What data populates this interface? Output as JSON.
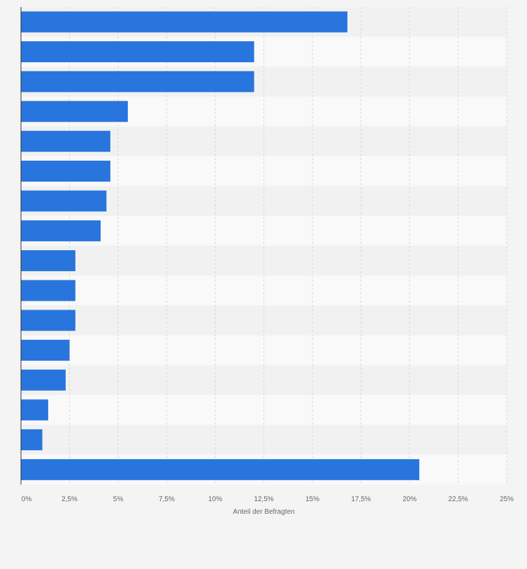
{
  "chart_data": {
    "type": "bar",
    "orientation": "horizontal",
    "title": "",
    "xlabel": "Anteil der Befragten",
    "ylabel": "",
    "xlim": [
      0,
      25
    ],
    "xticks": [
      "0%",
      "2,5%",
      "5%",
      "7,5%",
      "10%",
      "12,5%",
      "15%",
      "17,5%",
      "20%",
      "22,5%",
      "25%"
    ],
    "categories": [
      "",
      "",
      "",
      "",
      "",
      "",
      "",
      "",
      "",
      "",
      "",
      "",
      "",
      "",
      "",
      ""
    ],
    "values": [
      16.8,
      12.0,
      12.0,
      5.5,
      4.6,
      4.6,
      4.4,
      4.1,
      2.8,
      2.8,
      2.8,
      2.5,
      2.3,
      1.4,
      1.1,
      20.5
    ],
    "grid": true,
    "legend": "none",
    "colors": {
      "bar": "#2876dd",
      "band_dark": "#f1f1f1",
      "band_light": "#f9f9f9",
      "grid": "#d8d8d8",
      "axis": "#333333",
      "tick_text": "#666666",
      "background": "#f4f4f4"
    }
  }
}
